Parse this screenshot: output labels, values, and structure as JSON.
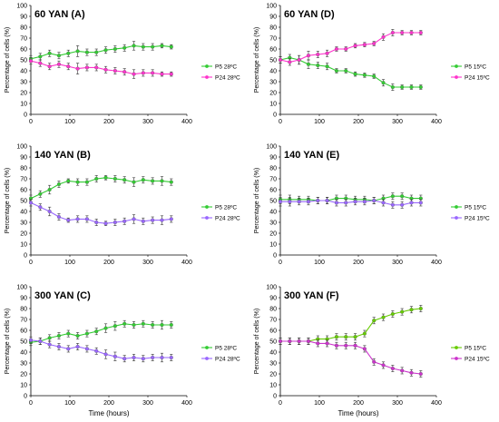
{
  "figure": {
    "y_label": "Percentage of cells (%)",
    "x_label": "Time (hours)"
  },
  "chart_data": [
    {
      "type": "line",
      "title": "60 YAN (A)",
      "xlabel": "",
      "ylabel": "Percentage of cells (%)",
      "xlim": [
        0,
        400
      ],
      "ylim": [
        0,
        100
      ],
      "xticks": [
        "0",
        "100",
        "200",
        "300",
        "400"
      ],
      "yticks": [
        "0",
        "10",
        "20",
        "30",
        "40",
        "50",
        "60",
        "70",
        "80",
        "90",
        "100"
      ],
      "legend_position": "right",
      "series": [
        {
          "name": "P5 28ºC",
          "color": "#33cc33",
          "x": [
            0,
            24,
            48,
            72,
            96,
            120,
            144,
            168,
            192,
            216,
            240,
            264,
            288,
            312,
            336,
            360
          ],
          "values": [
            51,
            53,
            56,
            54,
            56,
            58,
            57,
            57,
            59,
            60,
            61,
            63,
            62,
            62,
            63,
            62
          ],
          "error": [
            3,
            3,
            3,
            3,
            3,
            5,
            3,
            3,
            3,
            3,
            3,
            4,
            3,
            3,
            2,
            2
          ]
        },
        {
          "name": "P24 28ºC",
          "color": "#ff33cc",
          "x": [
            0,
            24,
            48,
            72,
            96,
            120,
            144,
            168,
            192,
            216,
            240,
            264,
            288,
            312,
            336,
            360
          ],
          "values": [
            49,
            47,
            44,
            46,
            44,
            42,
            43,
            43,
            41,
            40,
            39,
            37,
            38,
            38,
            37,
            37
          ],
          "error": [
            3,
            3,
            3,
            3,
            3,
            5,
            3,
            3,
            3,
            3,
            3,
            4,
            3,
            3,
            2,
            2
          ]
        }
      ]
    },
    {
      "type": "line",
      "title": "60 YAN (D)",
      "xlabel": "",
      "ylabel": "Percentage of cells (%)",
      "xlim": [
        0,
        400
      ],
      "ylim": [
        0,
        100
      ],
      "xticks": [
        "0",
        "100",
        "200",
        "300",
        "400"
      ],
      "yticks": [
        "0",
        "10",
        "20",
        "30",
        "40",
        "50",
        "60",
        "70",
        "80",
        "90",
        "100"
      ],
      "legend_position": "right",
      "series": [
        {
          "name": "P5 15ºC",
          "color": "#33cc33",
          "x": [
            0,
            24,
            48,
            72,
            96,
            120,
            144,
            168,
            192,
            216,
            240,
            264,
            288,
            312,
            336,
            360
          ],
          "values": [
            50,
            52,
            50,
            46,
            45,
            44,
            40,
            40,
            37,
            36,
            35,
            29,
            25,
            25,
            25,
            25
          ],
          "error": [
            3,
            3,
            4,
            4,
            3,
            3,
            2,
            2,
            2,
            2,
            2,
            3,
            3,
            2,
            2,
            2
          ]
        },
        {
          "name": "P24 15ºC",
          "color": "#ff33cc",
          "x": [
            0,
            24,
            48,
            72,
            96,
            120,
            144,
            168,
            192,
            216,
            240,
            264,
            288,
            312,
            336,
            360
          ],
          "values": [
            50,
            48,
            50,
            54,
            55,
            56,
            60,
            60,
            63,
            64,
            65,
            71,
            75,
            75,
            75,
            75
          ],
          "error": [
            3,
            3,
            4,
            4,
            3,
            3,
            2,
            2,
            2,
            2,
            2,
            3,
            3,
            2,
            2,
            2
          ]
        }
      ]
    },
    {
      "type": "line",
      "title": "140 YAN (B)",
      "xlabel": "",
      "ylabel": "Percentage of cells (%)",
      "xlim": [
        0,
        400
      ],
      "ylim": [
        0,
        100
      ],
      "xticks": [
        "0",
        "100",
        "200",
        "300",
        "400"
      ],
      "yticks": [
        "0",
        "10",
        "20",
        "30",
        "40",
        "50",
        "60",
        "70",
        "80",
        "90",
        "100"
      ],
      "legend_position": "right",
      "series": [
        {
          "name": "P5 28ºC",
          "color": "#33cc33",
          "x": [
            0,
            24,
            48,
            72,
            96,
            120,
            144,
            168,
            192,
            216,
            240,
            264,
            288,
            312,
            336,
            360
          ],
          "values": [
            52,
            56,
            60,
            65,
            68,
            67,
            67,
            70,
            71,
            70,
            69,
            67,
            69,
            68,
            68,
            67
          ],
          "error": [
            3,
            3,
            4,
            3,
            2,
            3,
            3,
            3,
            2,
            3,
            3,
            4,
            3,
            3,
            4,
            3
          ]
        },
        {
          "name": "P24 28ºC",
          "color": "#9966ff",
          "x": [
            0,
            24,
            48,
            72,
            96,
            120,
            144,
            168,
            192,
            216,
            240,
            264,
            288,
            312,
            336,
            360
          ],
          "values": [
            48,
            44,
            40,
            35,
            32,
            33,
            33,
            30,
            29,
            30,
            31,
            33,
            31,
            32,
            32,
            33
          ],
          "error": [
            3,
            3,
            4,
            3,
            2,
            3,
            3,
            3,
            2,
            3,
            3,
            4,
            3,
            3,
            4,
            3
          ]
        }
      ]
    },
    {
      "type": "line",
      "title": "140 YAN (E)",
      "xlabel": "",
      "ylabel": "Percentage of cells (%)",
      "xlim": [
        0,
        400
      ],
      "ylim": [
        0,
        100
      ],
      "xticks": [
        "0",
        "100",
        "200",
        "300",
        "400"
      ],
      "yticks": [
        "0",
        "10",
        "20",
        "30",
        "40",
        "50",
        "60",
        "70",
        "80",
        "90",
        "100"
      ],
      "legend_position": "right",
      "series": [
        {
          "name": "P5 15ºC",
          "color": "#33cc33",
          "x": [
            0,
            24,
            48,
            72,
            96,
            120,
            144,
            168,
            192,
            216,
            240,
            264,
            288,
            312,
            336,
            360
          ],
          "values": [
            51,
            51,
            51,
            51,
            50,
            50,
            52,
            52,
            51,
            51,
            50,
            52,
            54,
            54,
            52,
            52
          ],
          "error": [
            4,
            4,
            3,
            3,
            3,
            3,
            3,
            3,
            3,
            3,
            3,
            3,
            3,
            3,
            3,
            3
          ]
        },
        {
          "name": "P24 15ºC",
          "color": "#9966ff",
          "x": [
            0,
            24,
            48,
            72,
            96,
            120,
            144,
            168,
            192,
            216,
            240,
            264,
            288,
            312,
            336,
            360
          ],
          "values": [
            49,
            49,
            49,
            49,
            50,
            50,
            48,
            48,
            49,
            49,
            50,
            48,
            46,
            46,
            48,
            48
          ],
          "error": [
            4,
            4,
            3,
            3,
            3,
            3,
            3,
            3,
            3,
            3,
            3,
            3,
            3,
            3,
            3,
            3
          ]
        }
      ]
    },
    {
      "type": "line",
      "title": "300 YAN (C)",
      "xlabel": "Time (hours)",
      "ylabel": "Percentage of cells (%)",
      "xlim": [
        0,
        400
      ],
      "ylim": [
        0,
        100
      ],
      "xticks": [
        "0",
        "100",
        "200",
        "300",
        "400"
      ],
      "yticks": [
        "0",
        "10",
        "20",
        "30",
        "40",
        "50",
        "60",
        "70",
        "80",
        "90",
        "100"
      ],
      "legend_position": "right",
      "series": [
        {
          "name": "P5 28ºC",
          "color": "#33cc33",
          "x": [
            0,
            24,
            48,
            72,
            96,
            120,
            144,
            168,
            192,
            216,
            240,
            264,
            288,
            312,
            336,
            360
          ],
          "values": [
            49,
            50,
            53,
            55,
            57,
            55,
            57,
            59,
            62,
            64,
            66,
            65,
            66,
            65,
            65,
            65
          ],
          "error": [
            3,
            3,
            3,
            3,
            3,
            3,
            3,
            3,
            4,
            4,
            3,
            3,
            3,
            3,
            4,
            3
          ]
        },
        {
          "name": "P24 28ºC",
          "color": "#9966ff",
          "x": [
            0,
            24,
            48,
            72,
            96,
            120,
            144,
            168,
            192,
            216,
            240,
            264,
            288,
            312,
            336,
            360
          ],
          "values": [
            51,
            50,
            47,
            45,
            43,
            45,
            43,
            41,
            38,
            36,
            34,
            35,
            34,
            35,
            35,
            35
          ],
          "error": [
            3,
            3,
            3,
            3,
            3,
            3,
            3,
            3,
            4,
            4,
            3,
            3,
            3,
            3,
            4,
            3
          ]
        }
      ]
    },
    {
      "type": "line",
      "title": "300 YAN (F)",
      "xlabel": "Time (hours)",
      "ylabel": "Percentage of cells (%)",
      "xlim": [
        0,
        400
      ],
      "ylim": [
        0,
        100
      ],
      "xticks": [
        "0",
        "100",
        "200",
        "300",
        "400"
      ],
      "yticks": [
        "0",
        "10",
        "20",
        "30",
        "40",
        "50",
        "60",
        "70",
        "80",
        "90",
        "100"
      ],
      "legend_position": "right",
      "series": [
        {
          "name": "P5 15ºC",
          "color": "#66cc00",
          "x": [
            0,
            24,
            48,
            72,
            96,
            120,
            144,
            168,
            192,
            216,
            240,
            264,
            288,
            312,
            336,
            360
          ],
          "values": [
            50,
            50,
            50,
            50,
            52,
            52,
            54,
            54,
            54,
            57,
            69,
            72,
            75,
            77,
            79,
            80
          ],
          "error": [
            3,
            3,
            3,
            3,
            3,
            3,
            3,
            3,
            3,
            3,
            3,
            3,
            3,
            3,
            3,
            3
          ]
        },
        {
          "name": "P24 15ºC",
          "color": "#cc33cc",
          "x": [
            0,
            24,
            48,
            72,
            96,
            120,
            144,
            168,
            192,
            216,
            240,
            264,
            288,
            312,
            336,
            360
          ],
          "values": [
            50,
            50,
            50,
            50,
            48,
            48,
            46,
            46,
            46,
            43,
            31,
            28,
            25,
            23,
            21,
            20
          ],
          "error": [
            3,
            3,
            3,
            3,
            3,
            3,
            3,
            3,
            3,
            3,
            3,
            3,
            3,
            3,
            3,
            3
          ]
        }
      ]
    }
  ]
}
